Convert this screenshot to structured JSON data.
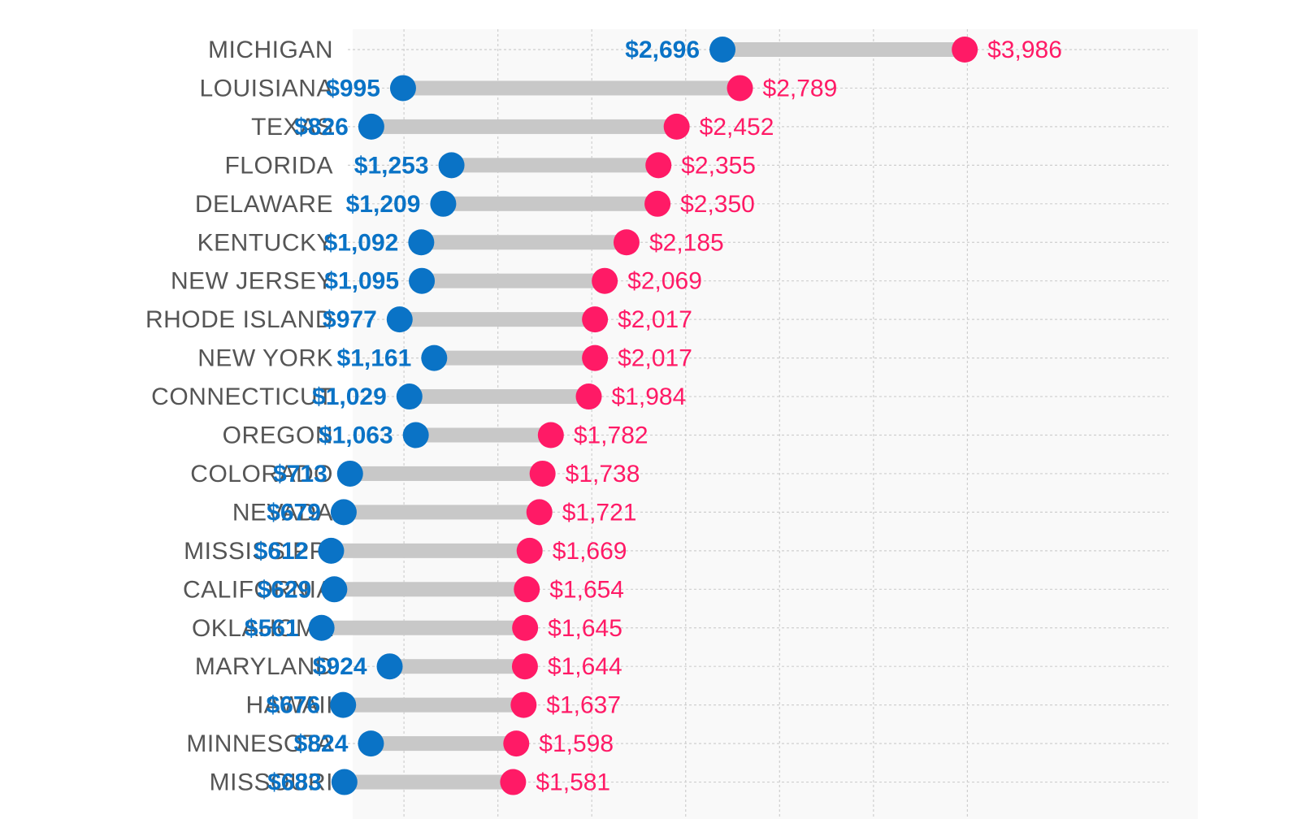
{
  "chart_data": {
    "type": "dumbbell",
    "title": "",
    "xlabel": "",
    "ylabel": "",
    "xlim": [
      0,
      4200
    ],
    "gridlines_x": [
      500,
      1000,
      1500,
      2000,
      2500,
      3000,
      3500,
      4000
    ],
    "grid": true,
    "legend": "none",
    "colors": {
      "low": "#0A73C6",
      "high": "#FF1A66",
      "bar": "#C8C8C8",
      "grid": "#CFCFCF",
      "plot_background": "#F9F9F9",
      "state_label": "#555555"
    },
    "series": [
      {
        "name": "low",
        "values": [
          2696,
          995,
          826,
          1253,
          1209,
          1092,
          1095,
          977,
          1161,
          1029,
          1063,
          713,
          679,
          612,
          629,
          561,
          924,
          676,
          824,
          683
        ]
      },
      {
        "name": "high",
        "values": [
          3986,
          2789,
          2452,
          2355,
          2350,
          2185,
          2069,
          2017,
          2017,
          1984,
          1782,
          1738,
          1721,
          1669,
          1654,
          1645,
          1644,
          1637,
          1598,
          1581
        ]
      }
    ],
    "rows": [
      {
        "state": "MICHIGAN",
        "low": 2696,
        "high": 3986,
        "low_label": "$2,696",
        "high_label": "$3,986"
      },
      {
        "state": "LOUISIANA",
        "low": 995,
        "high": 2789,
        "low_label": "$995",
        "high_label": "$2,789"
      },
      {
        "state": "TEXAS",
        "low": 826,
        "high": 2452,
        "low_label": "$826",
        "high_label": "$2,452"
      },
      {
        "state": "FLORIDA",
        "low": 1253,
        "high": 2355,
        "low_label": "$1,253",
        "high_label": "$2,355"
      },
      {
        "state": "DELAWARE",
        "low": 1209,
        "high": 2350,
        "low_label": "$1,209",
        "high_label": "$2,350"
      },
      {
        "state": "KENTUCKY",
        "low": 1092,
        "high": 2185,
        "low_label": "$1,092",
        "high_label": "$2,185"
      },
      {
        "state": "NEW JERSEY",
        "low": 1095,
        "high": 2069,
        "low_label": "$1,095",
        "high_label": "$2,069"
      },
      {
        "state": "RHODE ISLAND",
        "low": 977,
        "high": 2017,
        "low_label": "$977",
        "high_label": "$2,017"
      },
      {
        "state": "NEW YORK",
        "low": 1161,
        "high": 2017,
        "low_label": "$1,161",
        "high_label": "$2,017"
      },
      {
        "state": "CONNECTICUT",
        "low": 1029,
        "high": 1984,
        "low_label": "$1,029",
        "high_label": "$1,984"
      },
      {
        "state": "OREGON",
        "low": 1063,
        "high": 1782,
        "low_label": "$1,063",
        "high_label": "$1,782"
      },
      {
        "state": "COLORADO",
        "low": 713,
        "high": 1738,
        "low_label": "$713",
        "high_label": "$1,738"
      },
      {
        "state": "NEVADA",
        "low": 679,
        "high": 1721,
        "low_label": "$679",
        "high_label": "$1,721"
      },
      {
        "state": "MISSISSIPPI",
        "low": 612,
        "high": 1669,
        "low_label": "$612",
        "high_label": "$1,669"
      },
      {
        "state": "CALIFORNIA",
        "low": 629,
        "high": 1654,
        "low_label": "$629",
        "high_label": "$1,654"
      },
      {
        "state": "OKLAHOMA",
        "low": 561,
        "high": 1645,
        "low_label": "$561",
        "high_label": "$1,645"
      },
      {
        "state": "MARYLAND",
        "low": 924,
        "high": 1644,
        "low_label": "$924",
        "high_label": "$1,644"
      },
      {
        "state": "HAWAII",
        "low": 676,
        "high": 1637,
        "low_label": "$676",
        "high_label": "$1,637"
      },
      {
        "state": "MINNESOTA",
        "low": 824,
        "high": 1598,
        "low_label": "$824",
        "high_label": "$1,598"
      },
      {
        "state": "MISSOURI",
        "low": 683,
        "high": 1581,
        "low_label": "$683",
        "high_label": "$1,581"
      }
    ]
  }
}
